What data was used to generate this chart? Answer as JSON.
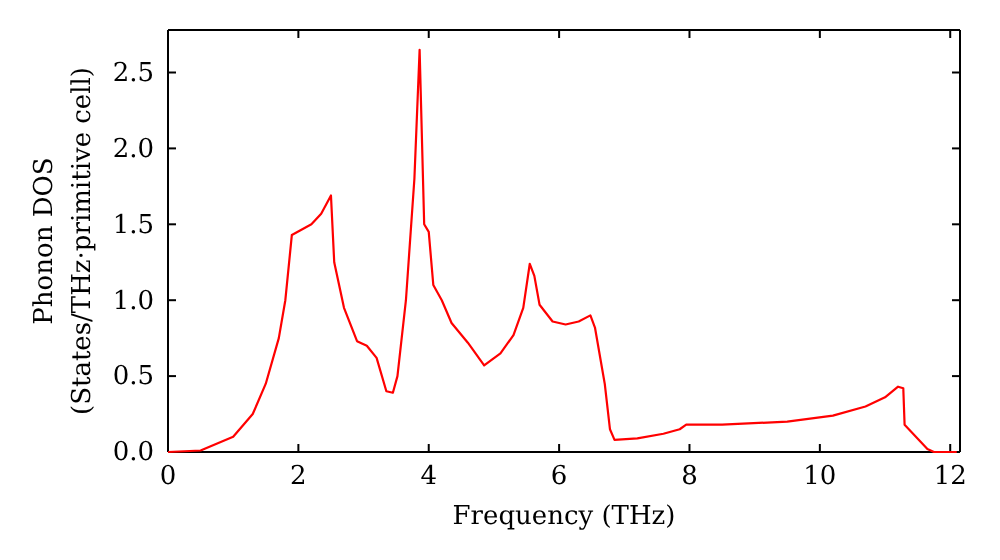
{
  "chart_data": {
    "type": "line",
    "xlabel": "Frequency (THz)",
    "ylabel": "Phonon DOS\n(States/THz·primitive cell)",
    "xlim": [
      0,
      12.15
    ],
    "ylim": [
      0,
      2.78
    ],
    "xticks": [
      0,
      2,
      4,
      6,
      8,
      10,
      12
    ],
    "yticks": [
      {
        "value": 0,
        "label": "0.0"
      },
      0.5,
      {
        "value": 1,
        "label": "1.0"
      },
      1.5,
      {
        "value": 2,
        "label": "2.0"
      },
      2.5
    ],
    "grid": false,
    "marker": "none",
    "line_style": "solid",
    "series": [
      {
        "color": "#ff0000",
        "x": [
          0,
          0.5,
          1.0,
          1.3,
          1.5,
          1.7,
          1.8,
          1.9,
          2.2,
          2.35,
          2.5,
          2.55,
          2.7,
          2.9,
          3.05,
          3.2,
          3.35,
          3.45,
          3.52,
          3.65,
          3.78,
          3.86,
          3.93,
          4.0,
          4.07,
          4.2,
          4.35,
          4.6,
          4.85,
          5.1,
          5.3,
          5.45,
          5.55,
          5.62,
          5.7,
          5.9,
          6.1,
          6.3,
          6.48,
          6.55,
          6.7,
          6.78,
          6.85,
          7.2,
          7.6,
          7.85,
          7.95,
          8.5,
          9.5,
          10.2,
          10.7,
          11.0,
          11.2,
          11.28,
          11.3,
          11.65,
          11.75,
          12.1
        ],
        "values": [
          0,
          0.01,
          0.1,
          0.25,
          0.45,
          0.75,
          1.0,
          1.43,
          1.5,
          1.57,
          1.69,
          1.25,
          0.95,
          0.73,
          0.7,
          0.62,
          0.4,
          0.39,
          0.5,
          1.0,
          1.8,
          2.65,
          1.5,
          1.45,
          1.1,
          1.0,
          0.85,
          0.72,
          0.57,
          0.65,
          0.77,
          0.95,
          1.24,
          1.16,
          0.97,
          0.86,
          0.84,
          0.86,
          0.9,
          0.82,
          0.45,
          0.15,
          0.08,
          0.09,
          0.12,
          0.15,
          0.18,
          0.18,
          0.2,
          0.24,
          0.3,
          0.36,
          0.43,
          0.42,
          0.18,
          0.02,
          0,
          0
        ]
      }
    ]
  }
}
